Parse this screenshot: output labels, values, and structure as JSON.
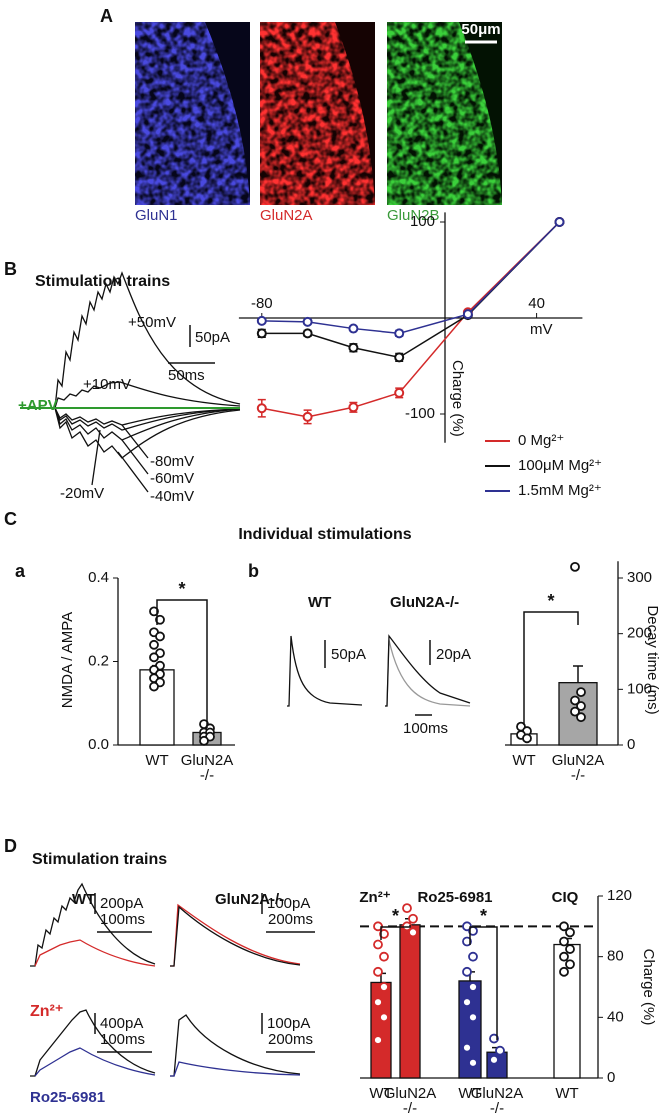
{
  "panel_a": {
    "label": "A",
    "scale_bar": "50μm",
    "images": [
      "GluN1",
      "GluN2A",
      "GluN2B"
    ]
  },
  "panel_b": {
    "label": "B",
    "title": "Stimulation trains",
    "trace_labels": [
      "+50mV",
      "50pA",
      "50ms",
      "+10mV",
      "+APV",
      "-80mV",
      "-60mV",
      "-40mV",
      "-20mV"
    ]
  },
  "panel_c": {
    "label": "C",
    "title": "Individual stimulations",
    "sub_a": "a",
    "sub_b": "b",
    "trace_labels": [
      "WT",
      "GluN2A-/-",
      "50pA",
      "20pA",
      "100ms"
    ]
  },
  "panel_d": {
    "label": "D",
    "title": "Stimulation trains",
    "trace_labels": [
      "WT",
      "GluN2A-/-",
      "200pA",
      "100ms",
      "100pA",
      "200ms",
      "400pA",
      "100ms",
      "100pA",
      "200ms"
    ],
    "condition_labels": [
      "Zn²⁺",
      "Ro25-6981"
    ]
  },
  "chart_data": [
    {
      "type": "line",
      "xlabel": "mV",
      "ylabel": "Charge (%)",
      "x": [
        -80,
        -60,
        -40,
        -20,
        10,
        50
      ],
      "xlim": [
        -90,
        60
      ],
      "ylim": [
        -130,
        110
      ],
      "xticks": [
        -80,
        40
      ],
      "yticks": [
        -100,
        100
      ],
      "series": [
        {
          "name": "0 Mg²⁺",
          "color": "#d42a2a",
          "values": [
            -94,
            -103,
            -93,
            -78,
            6,
            100
          ],
          "errors": [
            9,
            7,
            5,
            5,
            2,
            0
          ]
        },
        {
          "name": "100μM Mg²⁺",
          "color": "#111111",
          "values": [
            -16,
            -16,
            -31,
            -41,
            3,
            100
          ],
          "errors": [
            4,
            3,
            4,
            4,
            2,
            0
          ]
        },
        {
          "name": "1.5mM Mg²⁺",
          "color": "#2e3192",
          "values": [
            -3,
            -4,
            -11,
            -16,
            4,
            100
          ],
          "errors": [
            2,
            2,
            2,
            3,
            1,
            0
          ]
        }
      ]
    },
    {
      "type": "bar",
      "ylabel": "NMDA / AMPA",
      "categories": [
        "WT",
        "GluN2A -/-"
      ],
      "values": [
        0.18,
        0.03
      ],
      "errors": [
        0.01,
        0.005
      ],
      "colors": [
        "#ffffff",
        "#a6a6a6"
      ],
      "points": [
        [
          0.32,
          0.3,
          0.27,
          0.26,
          0.24,
          0.22,
          0.21,
          0.19,
          0.18,
          0.17,
          0.16,
          0.15,
          0.14
        ],
        [
          0.05,
          0.04,
          0.03,
          0.03,
          0.02,
          0.02,
          0.01
        ]
      ],
      "ylim": [
        0,
        0.4
      ],
      "yticks": [
        {
          "value": 0,
          "label": "0.0"
        },
        0.2,
        0.4
      ],
      "significance": [
        "*"
      ]
    },
    {
      "type": "bar",
      "ylabel": "Decay time (ms)",
      "categories": [
        "WT",
        "GluN2A -/-"
      ],
      "values": [
        20,
        112
      ],
      "errors": [
        4,
        30
      ],
      "colors": [
        "#ffffff",
        "#a6a6a6"
      ],
      "points": [
        [
          33,
          25,
          18,
          12
        ],
        [
          320,
          95,
          80,
          70,
          60,
          50
        ]
      ],
      "ylim": [
        0,
        330
      ],
      "yticks": [
        0,
        100,
        200,
        300
      ],
      "significance": [
        "*"
      ]
    },
    {
      "type": "bar",
      "ylabel": "Charge (%)",
      "groups": [
        "Zn²⁺",
        "Ro25-6981",
        "CIQ"
      ],
      "categories": [
        "WT",
        "GluN2A -/-",
        "WT",
        "GluN2A -/-",
        "WT"
      ],
      "values": [
        63,
        101,
        64,
        17,
        88
      ],
      "errors": [
        6,
        4,
        6,
        3,
        4
      ],
      "colors": [
        "#d42a2a",
        "#d42a2a",
        "#2e3192",
        "#2e3192",
        "#ffffff"
      ],
      "points": [
        [
          100,
          95,
          88,
          80,
          70,
          60,
          50,
          40,
          25
        ],
        [
          112,
          105,
          100,
          96
        ],
        [
          100,
          97,
          90,
          80,
          70,
          60,
          50,
          40,
          20,
          10
        ],
        [
          26,
          18,
          12
        ],
        [
          100,
          96,
          90,
          85,
          80,
          75,
          70
        ]
      ],
      "reference_line": 100,
      "ylim": [
        0,
        120
      ],
      "yticks": [
        0,
        40,
        80,
        120
      ],
      "significance": [
        "*",
        "*"
      ]
    }
  ]
}
